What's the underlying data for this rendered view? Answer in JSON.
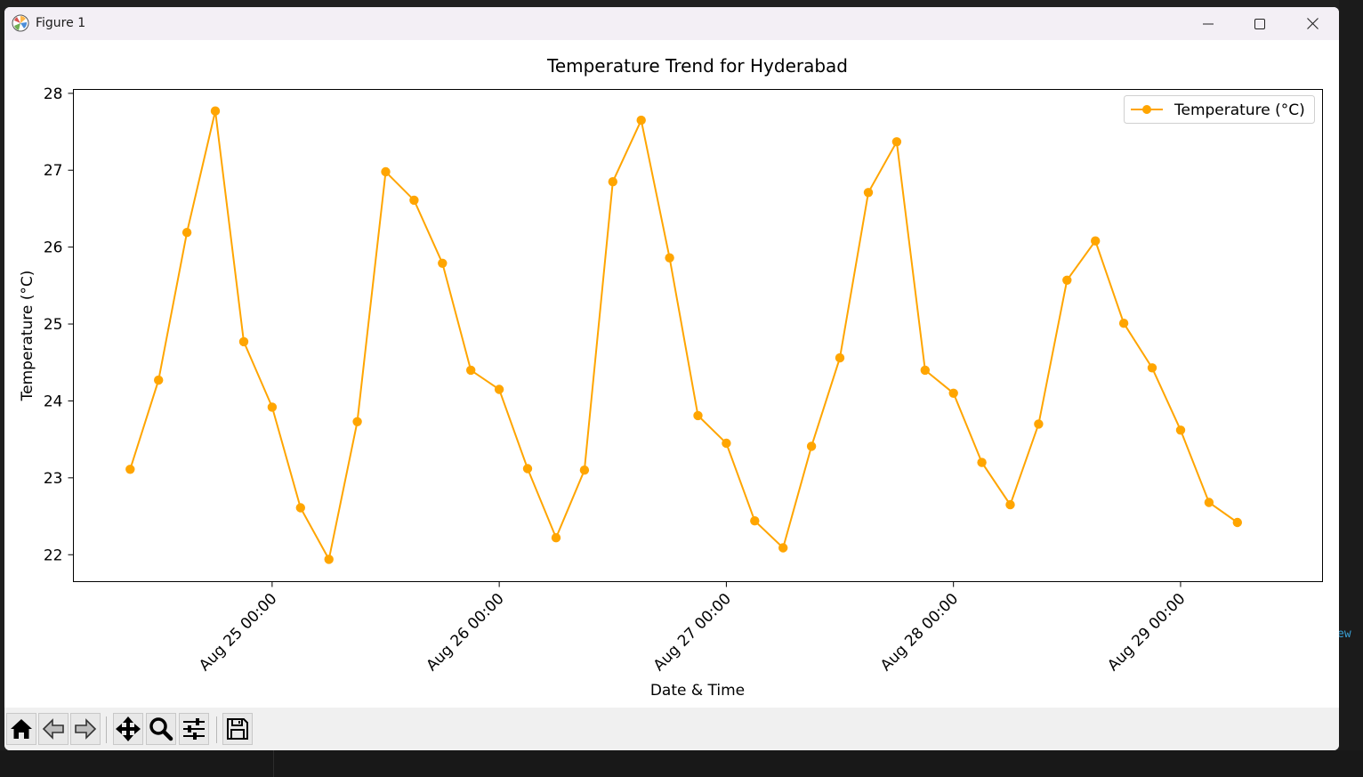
{
  "window": {
    "title": "Figure 1",
    "icon": "matplotlib-logo-icon",
    "controls": [
      "minimize-icon",
      "maximize-icon",
      "close-icon"
    ]
  },
  "background": {
    "partial_text": "ew"
  },
  "toolbar": {
    "buttons": [
      {
        "name": "home",
        "icon": "home-icon"
      },
      {
        "name": "back",
        "icon": "arrow-left-icon"
      },
      {
        "name": "forward",
        "icon": "arrow-right-icon"
      },
      {
        "name": "pan",
        "icon": "move-arrows-icon"
      },
      {
        "name": "zoom",
        "icon": "magnifier-icon"
      },
      {
        "name": "configure-subplots",
        "icon": "sliders-icon"
      },
      {
        "name": "save",
        "icon": "floppy-disk-icon"
      }
    ]
  },
  "chart_data": {
    "type": "line",
    "title": "Temperature Trend for Hyderabad",
    "xlabel": "Date & Time",
    "ylabel": "Temperature (°C)",
    "line_color": "#ffa500",
    "marker": "circle",
    "grid": false,
    "legend": {
      "location": "upper-right",
      "entries": [
        "Temperature (°C)"
      ]
    },
    "ylim": [
      21.65,
      28.05
    ],
    "yticks": [
      22,
      23,
      24,
      25,
      26,
      27,
      28
    ],
    "xlim": [
      "2024-08-24 03:00",
      "2024-08-29 15:00"
    ],
    "xticks": [
      {
        "value": "2024-08-25 00:00",
        "label": "Aug 25 00:00"
      },
      {
        "value": "2024-08-26 00:00",
        "label": "Aug 26 00:00"
      },
      {
        "value": "2024-08-27 00:00",
        "label": "Aug 27 00:00"
      },
      {
        "value": "2024-08-28 00:00",
        "label": "Aug 28 00:00"
      },
      {
        "value": "2024-08-29 00:00",
        "label": "Aug 29 00:00"
      }
    ],
    "series": [
      {
        "name": "Temperature (°C)",
        "x": [
          "2024-08-24 09:00",
          "2024-08-24 12:00",
          "2024-08-24 15:00",
          "2024-08-24 18:00",
          "2024-08-24 21:00",
          "2024-08-25 00:00",
          "2024-08-25 03:00",
          "2024-08-25 06:00",
          "2024-08-25 09:00",
          "2024-08-25 12:00",
          "2024-08-25 15:00",
          "2024-08-25 18:00",
          "2024-08-25 21:00",
          "2024-08-26 00:00",
          "2024-08-26 03:00",
          "2024-08-26 06:00",
          "2024-08-26 09:00",
          "2024-08-26 12:00",
          "2024-08-26 15:00",
          "2024-08-26 18:00",
          "2024-08-26 21:00",
          "2024-08-27 00:00",
          "2024-08-27 03:00",
          "2024-08-27 06:00",
          "2024-08-27 09:00",
          "2024-08-27 12:00",
          "2024-08-27 15:00",
          "2024-08-27 18:00",
          "2024-08-27 21:00",
          "2024-08-28 00:00",
          "2024-08-28 03:00",
          "2024-08-28 06:00",
          "2024-08-28 09:00",
          "2024-08-28 12:00",
          "2024-08-28 15:00",
          "2024-08-28 18:00",
          "2024-08-28 21:00",
          "2024-08-29 00:00",
          "2024-08-29 03:00",
          "2024-08-29 06:00"
        ],
        "y": [
          23.11,
          24.27,
          26.19,
          27.77,
          24.77,
          23.92,
          22.61,
          21.94,
          23.73,
          26.98,
          26.61,
          25.79,
          24.4,
          24.15,
          23.12,
          22.22,
          23.1,
          26.85,
          27.65,
          25.86,
          23.81,
          23.45,
          22.44,
          22.09,
          23.41,
          24.56,
          26.71,
          27.37,
          24.4,
          24.1,
          23.2,
          22.65,
          23.7,
          25.57,
          26.08,
          25.01,
          24.43,
          23.62,
          22.68,
          22.42
        ]
      }
    ]
  }
}
